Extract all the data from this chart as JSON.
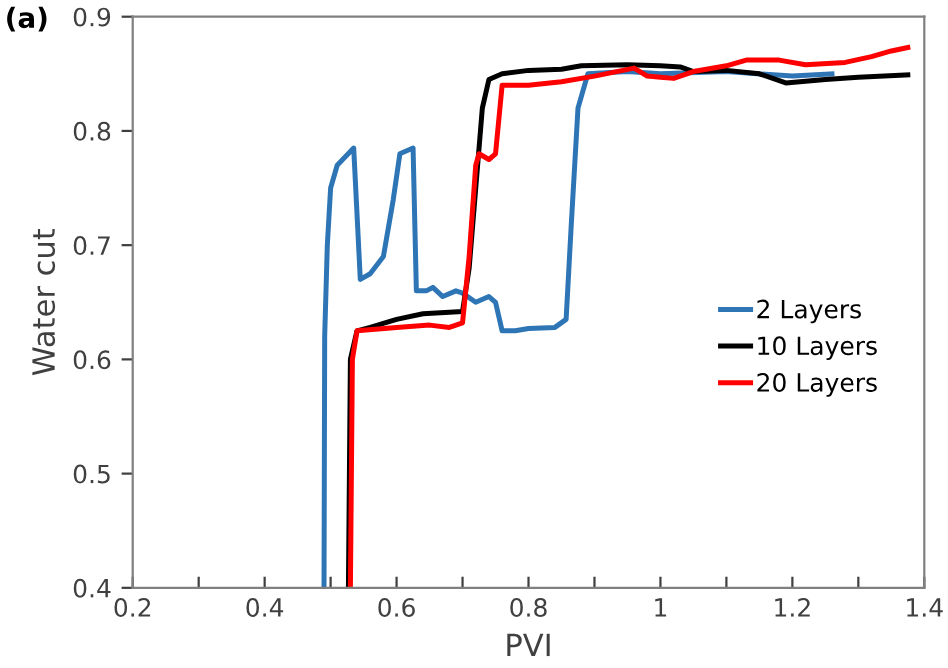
{
  "chart_data": {
    "type": "line",
    "xlabel": "PVI",
    "ylabel": "Water cut",
    "annotations": [
      "(a)"
    ],
    "xlim": [
      0.2,
      1.4
    ],
    "ylim": [
      0.4,
      0.9
    ],
    "xticks": [
      0.2,
      {
        "value": 0.3,
        "label": null
      },
      0.4,
      {
        "value": 0.5,
        "label": null
      },
      0.6,
      {
        "value": 0.7,
        "label": null
      },
      0.8,
      {
        "value": 0.9,
        "label": null
      },
      1,
      {
        "value": 1.1,
        "label": null
      },
      1.2,
      {
        "value": 1.3,
        "label": null
      },
      1.4
    ],
    "yticks": [
      0.4,
      0.5,
      0.6,
      0.7,
      0.8,
      0.9
    ],
    "grid": false,
    "legend": "right",
    "marker": "none",
    "line_style": "solid",
    "series": [
      {
        "name": "2 Layers",
        "color": "#2e75b6",
        "x": [
          0.49,
          0.491,
          0.495,
          0.5,
          0.51,
          0.535,
          0.545,
          0.56,
          0.58,
          0.595,
          0.605,
          0.625,
          0.63,
          0.645,
          0.655,
          0.67,
          0.69,
          0.7,
          0.72,
          0.74,
          0.75,
          0.76,
          0.78,
          0.8,
          0.84,
          0.857,
          0.865,
          0.875,
          0.89,
          0.95,
          1.0,
          1.1,
          1.2,
          1.26
        ],
        "values": [
          0.4,
          0.62,
          0.7,
          0.75,
          0.77,
          0.785,
          0.67,
          0.675,
          0.69,
          0.74,
          0.78,
          0.785,
          0.66,
          0.66,
          0.663,
          0.655,
          0.66,
          0.658,
          0.65,
          0.655,
          0.65,
          0.625,
          0.625,
          0.627,
          0.628,
          0.635,
          0.72,
          0.82,
          0.85,
          0.852,
          0.85,
          0.852,
          0.848,
          0.85
        ]
      },
      {
        "name": "10 Layers",
        "color": "#000000",
        "x": [
          0.527,
          0.53,
          0.54,
          0.56,
          0.6,
          0.64,
          0.7,
          0.71,
          0.73,
          0.74,
          0.76,
          0.8,
          0.85,
          0.88,
          0.95,
          1.0,
          1.03,
          1.05,
          1.1,
          1.15,
          1.19,
          1.25,
          1.3,
          1.375
        ],
        "values": [
          0.4,
          0.6,
          0.625,
          0.628,
          0.635,
          0.64,
          0.642,
          0.68,
          0.82,
          0.845,
          0.85,
          0.853,
          0.854,
          0.857,
          0.858,
          0.857,
          0.856,
          0.852,
          0.853,
          0.85,
          0.842,
          0.845,
          0.847,
          0.849
        ]
      },
      {
        "name": "20 Layers",
        "color": "#ff0000",
        "x": [
          0.53,
          0.533,
          0.54,
          0.6,
          0.65,
          0.68,
          0.7,
          0.71,
          0.72,
          0.725,
          0.74,
          0.75,
          0.76,
          0.78,
          0.8,
          0.85,
          0.9,
          0.96,
          0.98,
          1.0,
          1.02,
          1.05,
          1.1,
          1.13,
          1.18,
          1.22,
          1.28,
          1.32,
          1.35,
          1.375
        ],
        "values": [
          0.4,
          0.6,
          0.625,
          0.628,
          0.63,
          0.628,
          0.632,
          0.69,
          0.77,
          0.78,
          0.775,
          0.78,
          0.84,
          0.84,
          0.84,
          0.843,
          0.848,
          0.855,
          0.848,
          0.847,
          0.846,
          0.852,
          0.857,
          0.862,
          0.862,
          0.858,
          0.86,
          0.865,
          0.87,
          0.873
        ]
      }
    ]
  }
}
